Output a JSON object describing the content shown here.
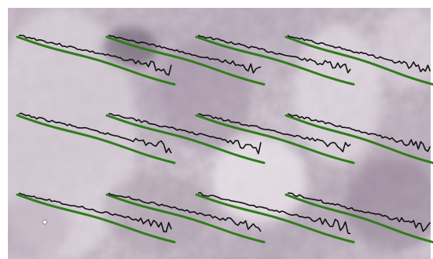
{
  "image": {
    "description_free": true,
    "tile_grid": {
      "rows": 3,
      "cols": 4
    },
    "colors": {
      "rock_light": "#d9d0da",
      "rock_mid": "#b6a8b8",
      "rock_dark": "#7f6f80",
      "rock_shadow": "#5b5058",
      "smooth_curve": "#2e7d1b",
      "noisy_curve": "#111111"
    }
  }
}
